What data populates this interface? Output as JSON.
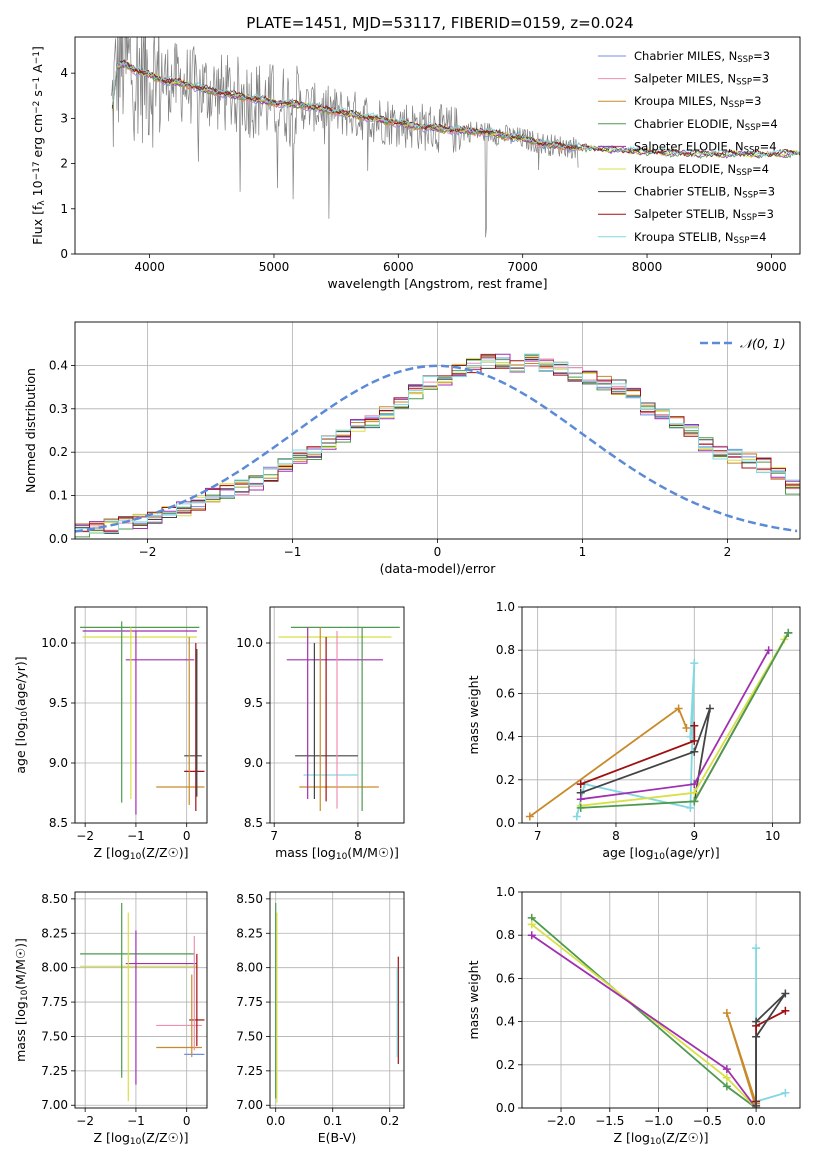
{
  "title": "PLATE=1451, MJD=53117, FIBERID=0159, z=0.024",
  "palette": [
    "#6f8fe6",
    "#f08fb0",
    "#c98a2b",
    "#4f9a4f",
    "#a030b0",
    "#d8e045",
    "#444444",
    "#a01010",
    "#80d8e0"
  ],
  "chart_data": [
    {
      "id": "spectrum",
      "type": "line",
      "title": "PLATE=1451, MJD=53117, FIBERID=0159, z=0.024",
      "xlabel": "wavelength [Angstrom, rest frame]",
      "ylabel": "Flux [f_λ 10^-17 erg cm^-2 s^-1 A^-1]",
      "xlim": [
        3400,
        9230
      ],
      "ylim": [
        0,
        4.8
      ],
      "xticks": [
        4000,
        5000,
        6000,
        7000,
        8000,
        9000
      ],
      "yticks": [
        0,
        1,
        2,
        3,
        4
      ],
      "grid": false,
      "legend_position": "top-right",
      "data_color": "#808080",
      "data_range": [
        3690,
        7450
      ],
      "continuum": {
        "x": [
          3690,
          3740,
          3800,
          3900,
          4000,
          4100,
          4300,
          4500,
          4800,
          5000,
          5200,
          5500,
          5800,
          6100,
          6400,
          6700,
          7000,
          7200,
          7450,
          7700,
          8000,
          8500,
          9000,
          9200
        ],
        "y": [
          3.0,
          4.15,
          4.2,
          4.05,
          3.95,
          3.85,
          3.75,
          3.6,
          3.45,
          3.35,
          3.3,
          3.15,
          3.0,
          2.85,
          2.75,
          2.7,
          2.55,
          2.42,
          2.35,
          2.3,
          2.25,
          2.2,
          2.2,
          2.22
        ]
      },
      "legend": [
        {
          "label": "Chabrier MILES, N",
          "sub": "SSP",
          "tail": "=3",
          "color": "#6f8fe6"
        },
        {
          "label": "Salpeter MILES, N",
          "sub": "SSP",
          "tail": "=3",
          "color": "#f08fb0"
        },
        {
          "label": "Kroupa MILES, N",
          "sub": "SSP",
          "tail": "=3",
          "color": "#c98a2b"
        },
        {
          "label": "Chabrier ELODIE, N",
          "sub": "SSP",
          "tail": "=4",
          "color": "#4f9a4f"
        },
        {
          "label": "Salpeter ELODIE, N",
          "sub": "SSP",
          "tail": "=4",
          "color": "#a030b0"
        },
        {
          "label": "Kroupa ELODIE, N",
          "sub": "SSP",
          "tail": "=4",
          "color": "#d8e045"
        },
        {
          "label": "Chabrier STELIB, N",
          "sub": "SSP",
          "tail": "=3",
          "color": "#444444"
        },
        {
          "label": "Salpeter STELIB, N",
          "sub": "SSP",
          "tail": "=3",
          "color": "#a01010"
        },
        {
          "label": "Kroupa STELIB, N",
          "sub": "SSP",
          "tail": "=4",
          "color": "#80d8e0"
        }
      ]
    },
    {
      "id": "residuals",
      "type": "line",
      "xlabel": "(data-model)/error",
      "ylabel": "Normed distribution",
      "xlim": [
        -2.5,
        2.5
      ],
      "ylim": [
        0,
        0.5
      ],
      "xticks": [
        -2,
        -1,
        0,
        1,
        2
      ],
      "yticks": [
        0.0,
        0.1,
        0.2,
        0.3,
        0.4
      ],
      "grid": true,
      "legend_position": "top-right",
      "gaussian": {
        "label": "𝒩(0, 1)",
        "mean": 0,
        "sigma": 1,
        "color": "#5b8ad8"
      },
      "bin_width": 0.1,
      "base_hist": [
        0.02,
        0.025,
        0.03,
        0.035,
        0.04,
        0.05,
        0.06,
        0.07,
        0.08,
        0.1,
        0.11,
        0.12,
        0.13,
        0.15,
        0.17,
        0.19,
        0.2,
        0.22,
        0.24,
        0.26,
        0.27,
        0.29,
        0.31,
        0.34,
        0.36,
        0.37,
        0.39,
        0.4,
        0.41,
        0.41,
        0.4,
        0.41,
        0.4,
        0.39,
        0.38,
        0.37,
        0.36,
        0.35,
        0.34,
        0.3,
        0.29,
        0.27,
        0.25,
        0.22,
        0.2,
        0.19,
        0.18,
        0.17,
        0.15,
        0.12,
        0.1,
        0.09,
        0.08,
        0.07,
        0.06,
        0.05,
        0.04,
        0.04,
        0.035,
        0.03
      ]
    },
    {
      "id": "age-Z",
      "type": "scatter",
      "xlabel": "Z [log10(Z/Z☉)]",
      "ylabel": "age [log10(age/yr)]",
      "xlim": [
        -2.2,
        0.4
      ],
      "ylim": [
        8.5,
        10.3
      ],
      "xticks": [
        -2,
        -1,
        0
      ],
      "yticks": [
        8.5,
        9.0,
        9.5,
        10.0
      ],
      "grid": true,
      "hlines": [
        {
          "y": 10.13,
          "x1": -2.1,
          "x2": 0.25,
          "color": "#4f9a4f"
        },
        {
          "y": 10.1,
          "x1": -2.05,
          "x2": 0.2,
          "color": "#a030b0"
        },
        {
          "y": 10.05,
          "x1": -2.05,
          "x2": 0.2,
          "color": "#d8e045"
        },
        {
          "y": 9.86,
          "x1": -1.2,
          "x2": 0.15,
          "color": "#a030b0"
        },
        {
          "y": 9.06,
          "x1": -0.05,
          "x2": 0.3,
          "color": "#444444"
        },
        {
          "y": 8.93,
          "x1": -0.05,
          "x2": 0.35,
          "color": "#a01010"
        },
        {
          "y": 8.8,
          "x1": -0.6,
          "x2": 0.35,
          "color": "#c98a2b"
        }
      ],
      "vlines": [
        {
          "x": -1.28,
          "y1": 8.67,
          "y2": 10.18,
          "color": "#4f9a4f"
        },
        {
          "x": -1.0,
          "y1": 8.57,
          "y2": 10.1,
          "color": "#a030b0"
        },
        {
          "x": -1.1,
          "y1": 8.7,
          "y2": 10.13,
          "color": "#d8e045"
        },
        {
          "x": 0.18,
          "y1": 8.6,
          "y2": 10.0,
          "color": "#a01010"
        },
        {
          "x": 0.2,
          "y1": 8.72,
          "y2": 9.95,
          "color": "#444444"
        },
        {
          "x": 0.05,
          "y1": 8.65,
          "y2": 10.05,
          "color": "#c98a2b"
        }
      ]
    },
    {
      "id": "age-mass",
      "type": "scatter",
      "xlabel": "mass [log10(M/M☉)]",
      "ylabel": "",
      "xlim": [
        6.95,
        8.55
      ],
      "ylim": [
        8.5,
        10.3
      ],
      "xticks": [
        7,
        8
      ],
      "yticks": [
        8.5,
        9.0,
        9.5,
        10.0
      ],
      "grid": true,
      "hlines": [
        {
          "y": 10.13,
          "x1": 7.2,
          "x2": 8.5,
          "color": "#4f9a4f"
        },
        {
          "y": 10.05,
          "x1": 7.05,
          "x2": 8.4,
          "color": "#d8e045"
        },
        {
          "y": 9.86,
          "x1": 7.15,
          "x2": 8.3,
          "color": "#a030b0"
        },
        {
          "y": 9.06,
          "x1": 7.25,
          "x2": 8.0,
          "color": "#444444"
        },
        {
          "y": 8.9,
          "x1": 7.35,
          "x2": 8.0,
          "color": "#80d8e0"
        },
        {
          "y": 8.8,
          "x1": 7.3,
          "x2": 8.25,
          "color": "#c98a2b"
        }
      ],
      "vlines": [
        {
          "x": 7.4,
          "y1": 8.7,
          "y2": 10.13,
          "color": "#a030b0"
        },
        {
          "x": 7.55,
          "y1": 8.6,
          "y2": 10.13,
          "color": "#c98a2b"
        },
        {
          "x": 7.62,
          "y1": 8.68,
          "y2": 10.05,
          "color": "#a01010"
        },
        {
          "x": 7.75,
          "y1": 8.62,
          "y2": 10.1,
          "color": "#f08fb0"
        },
        {
          "x": 8.05,
          "y1": 8.6,
          "y2": 10.13,
          "color": "#4f9a4f"
        },
        {
          "x": 7.48,
          "y1": 8.7,
          "y2": 10.0,
          "color": "#444444"
        }
      ]
    },
    {
      "id": "weight-age",
      "type": "line",
      "xlabel": "age [log10(age/yr)]",
      "ylabel": "mass weight",
      "xlim": [
        6.8,
        10.35
      ],
      "ylim": [
        0,
        1.0
      ],
      "xticks": [
        7,
        8,
        9,
        10
      ],
      "yticks": [
        0.0,
        0.2,
        0.4,
        0.6,
        0.8,
        1.0
      ],
      "grid": true,
      "series": [
        {
          "color": "#c98a2b",
          "x": [
            6.9,
            8.8,
            8.9
          ],
          "y": [
            0.03,
            0.53,
            0.44
          ]
        },
        {
          "color": "#80d8e0",
          "x": [
            7.5,
            7.6,
            8.95,
            9.0,
            8.95
          ],
          "y": [
            0.03,
            0.18,
            0.07,
            0.74,
            0.4
          ]
        },
        {
          "color": "#a01010",
          "x": [
            7.55,
            9.0,
            9.0
          ],
          "y": [
            0.18,
            0.38,
            0.45
          ]
        },
        {
          "color": "#444444",
          "x": [
            7.55,
            9.0,
            9.2,
            9.0,
            10.2
          ],
          "y": [
            0.14,
            0.33,
            0.53,
            0.1,
            0.88
          ]
        },
        {
          "color": "#a030b0",
          "x": [
            7.55,
            9.0,
            9.95
          ],
          "y": [
            0.11,
            0.18,
            0.8
          ]
        },
        {
          "color": "#d8e045",
          "x": [
            7.55,
            9.0,
            10.15
          ],
          "y": [
            0.08,
            0.14,
            0.85
          ]
        },
        {
          "color": "#4f9a4f",
          "x": [
            7.55,
            9.0,
            10.2
          ],
          "y": [
            0.07,
            0.1,
            0.88
          ]
        }
      ]
    },
    {
      "id": "mass-Z",
      "type": "scatter",
      "xlabel": "Z [log10(Z/Z☉)]",
      "ylabel": "mass [log10(M/M☉)]",
      "xlim": [
        -2.2,
        0.4
      ],
      "ylim": [
        6.98,
        8.55
      ],
      "xticks": [
        -2,
        -1,
        0
      ],
      "yticks": [
        7.0,
        7.25,
        7.5,
        7.75,
        8.0,
        8.25,
        8.5
      ],
      "grid": true,
      "hlines": [
        {
          "y": 8.1,
          "x1": -2.1,
          "x2": 0.15,
          "color": "#4f9a4f"
        },
        {
          "y": 8.03,
          "x1": -1.2,
          "x2": 0.2,
          "color": "#a030b0"
        },
        {
          "y": 8.01,
          "x1": -2.1,
          "x2": 0.2,
          "color": "#d8e045"
        },
        {
          "y": 7.62,
          "x1": 0.05,
          "x2": 0.35,
          "color": "#a01010"
        },
        {
          "y": 7.58,
          "x1": -0.6,
          "x2": 0.3,
          "color": "#f08fb0"
        },
        {
          "y": 7.42,
          "x1": -0.6,
          "x2": 0.3,
          "color": "#c98a2b"
        },
        {
          "y": 7.37,
          "x1": -0.05,
          "x2": 0.35,
          "color": "#6f8fe6"
        }
      ],
      "vlines": [
        {
          "x": -1.28,
          "y1": 7.2,
          "y2": 8.47,
          "color": "#4f9a4f"
        },
        {
          "x": -1.0,
          "y1": 7.15,
          "y2": 8.27,
          "color": "#a030b0"
        },
        {
          "x": -1.15,
          "y1": 7.03,
          "y2": 8.4,
          "color": "#d8e045"
        },
        {
          "x": 0.15,
          "y1": 7.4,
          "y2": 8.23,
          "color": "#f08fb0"
        },
        {
          "x": 0.2,
          "y1": 7.43,
          "y2": 8.1,
          "color": "#a01010"
        },
        {
          "x": 0.1,
          "y1": 7.35,
          "y2": 7.95,
          "color": "#c98a2b"
        }
      ]
    },
    {
      "id": "mass-EBV",
      "type": "scatter",
      "xlabel": "E(B-V)",
      "ylabel": "",
      "xlim": [
        -0.01,
        0.225
      ],
      "ylim": [
        6.98,
        8.55
      ],
      "xticks": [
        0.0,
        0.1,
        0.2
      ],
      "yticks": [
        7.0,
        7.25,
        7.5,
        7.75,
        8.0,
        8.25,
        8.5
      ],
      "grid": true,
      "vlines": [
        {
          "x": 0.0,
          "y1": 7.05,
          "y2": 8.47,
          "color": "#4f9a4f"
        },
        {
          "x": 0.002,
          "y1": 7.02,
          "y2": 8.4,
          "color": "#d8e045"
        },
        {
          "x": 0.215,
          "y1": 7.3,
          "y2": 8.08,
          "color": "#a01010"
        },
        {
          "x": 0.213,
          "y1": 7.35,
          "y2": 8.0,
          "color": "#80d8e0"
        }
      ]
    },
    {
      "id": "weight-Z",
      "type": "line",
      "xlabel": "Z [log10(Z/Z☉)]",
      "ylabel": "mass weight",
      "xlim": [
        -2.4,
        0.45
      ],
      "ylim": [
        0,
        1.0
      ],
      "xticks": [
        -2.0,
        -1.5,
        -1.0,
        -0.5,
        0.0
      ],
      "yticks": [
        0.0,
        0.2,
        0.4,
        0.6,
        0.8,
        1.0
      ],
      "grid": true,
      "series": [
        {
          "color": "#4f9a4f",
          "x": [
            -2.3,
            -0.3,
            0.0
          ],
          "y": [
            0.88,
            0.1,
            0.0
          ]
        },
        {
          "color": "#d8e045",
          "x": [
            -2.3,
            -0.3,
            0.0
          ],
          "y": [
            0.85,
            0.14,
            0.0
          ]
        },
        {
          "color": "#a030b0",
          "x": [
            -2.3,
            -0.3,
            0.0
          ],
          "y": [
            0.8,
            0.18,
            0.0
          ]
        },
        {
          "color": "#c98a2b",
          "x": [
            0.0,
            -0.3,
            0.0
          ],
          "y": [
            0.0,
            0.44,
            0.02
          ]
        },
        {
          "color": "#80d8e0",
          "x": [
            0.0,
            0.0,
            0.0,
            0.3
          ],
          "y": [
            0.0,
            0.74,
            0.03,
            0.07
          ]
        },
        {
          "color": "#a01010",
          "x": [
            0.0,
            0.0,
            0.3
          ],
          "y": [
            0.03,
            0.38,
            0.45
          ]
        },
        {
          "color": "#444444",
          "x": [
            0.0,
            0.0,
            0.3,
            0.0
          ],
          "y": [
            0.01,
            0.33,
            0.53,
            0.4
          ]
        }
      ]
    }
  ]
}
